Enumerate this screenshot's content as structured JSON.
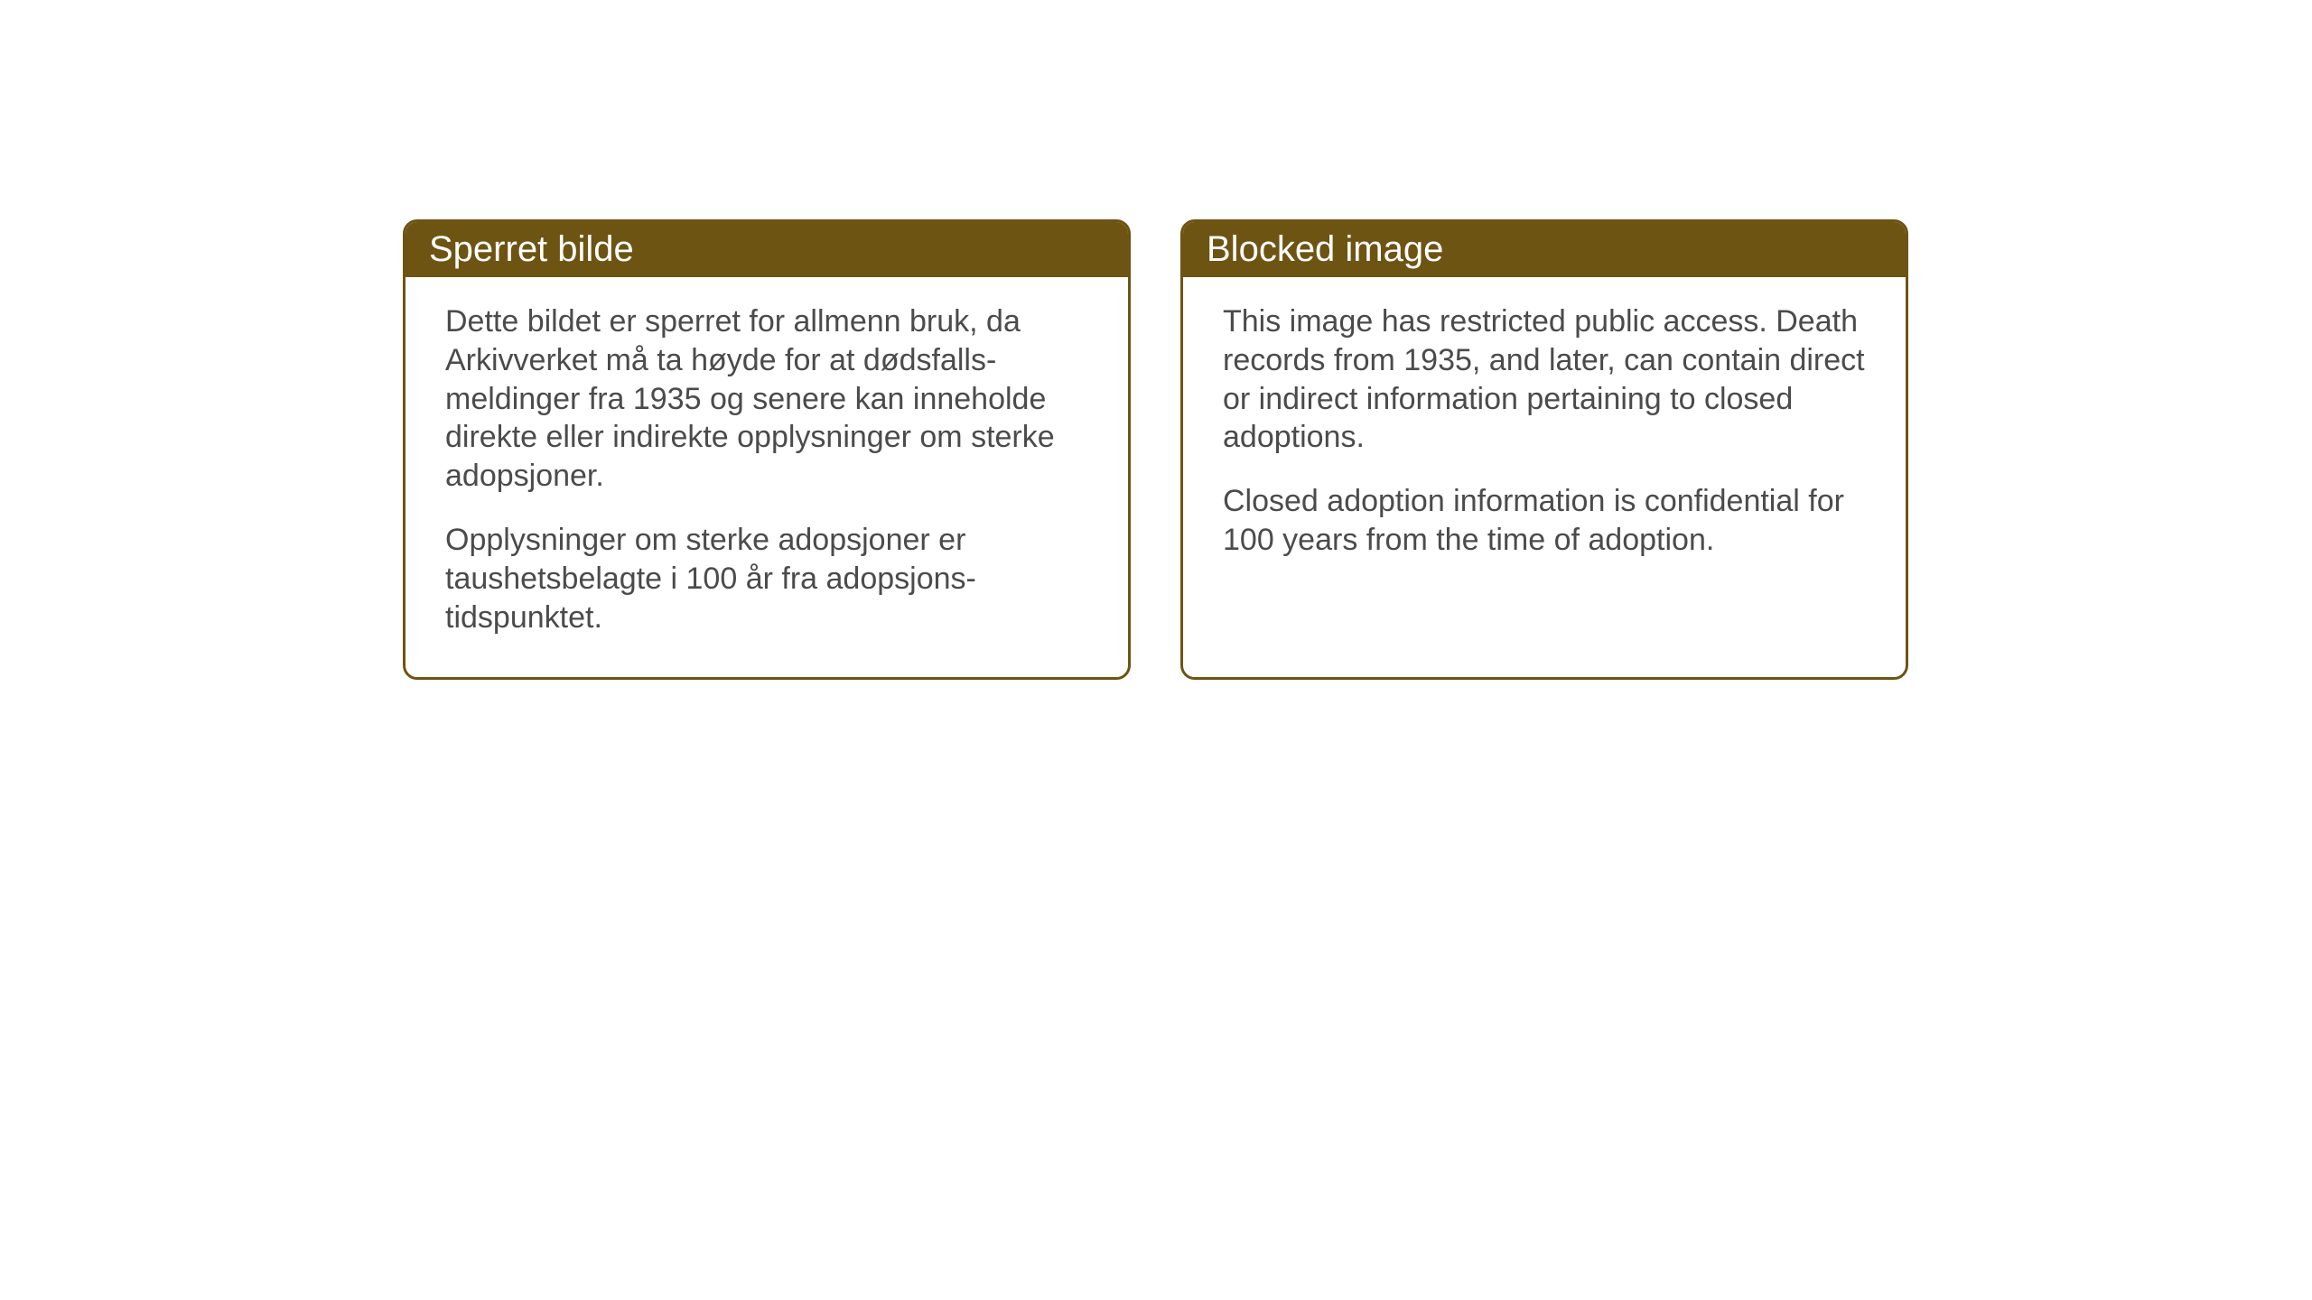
{
  "cards": {
    "norwegian": {
      "title": "Sperret bilde",
      "paragraph1": "Dette bildet er sperret for allmenn bruk, da Arkivverket må ta høyde for at dødsfalls-meldinger fra 1935 og senere kan inneholde direkte eller indirekte opplysninger om sterke adopsjoner.",
      "paragraph2": "Opplysninger om sterke adopsjoner er taushetsbelagte i 100 år fra adopsjons-tidspunktet."
    },
    "english": {
      "title": "Blocked image",
      "paragraph1": "This image has restricted public access. Death records from 1935, and later, can contain direct or indirect information pertaining to closed adoptions.",
      "paragraph2": "Closed adoption information is confidential for 100 years from the time of adoption."
    }
  },
  "styling": {
    "header_bg_color": "#6e5413",
    "header_text_color": "#ffffff",
    "border_color": "#6e5413",
    "body_text_color": "#4b4b4b",
    "background_color": "#ffffff",
    "header_fontsize": 40,
    "body_fontsize": 34,
    "border_radius": 16,
    "border_width": 3
  }
}
